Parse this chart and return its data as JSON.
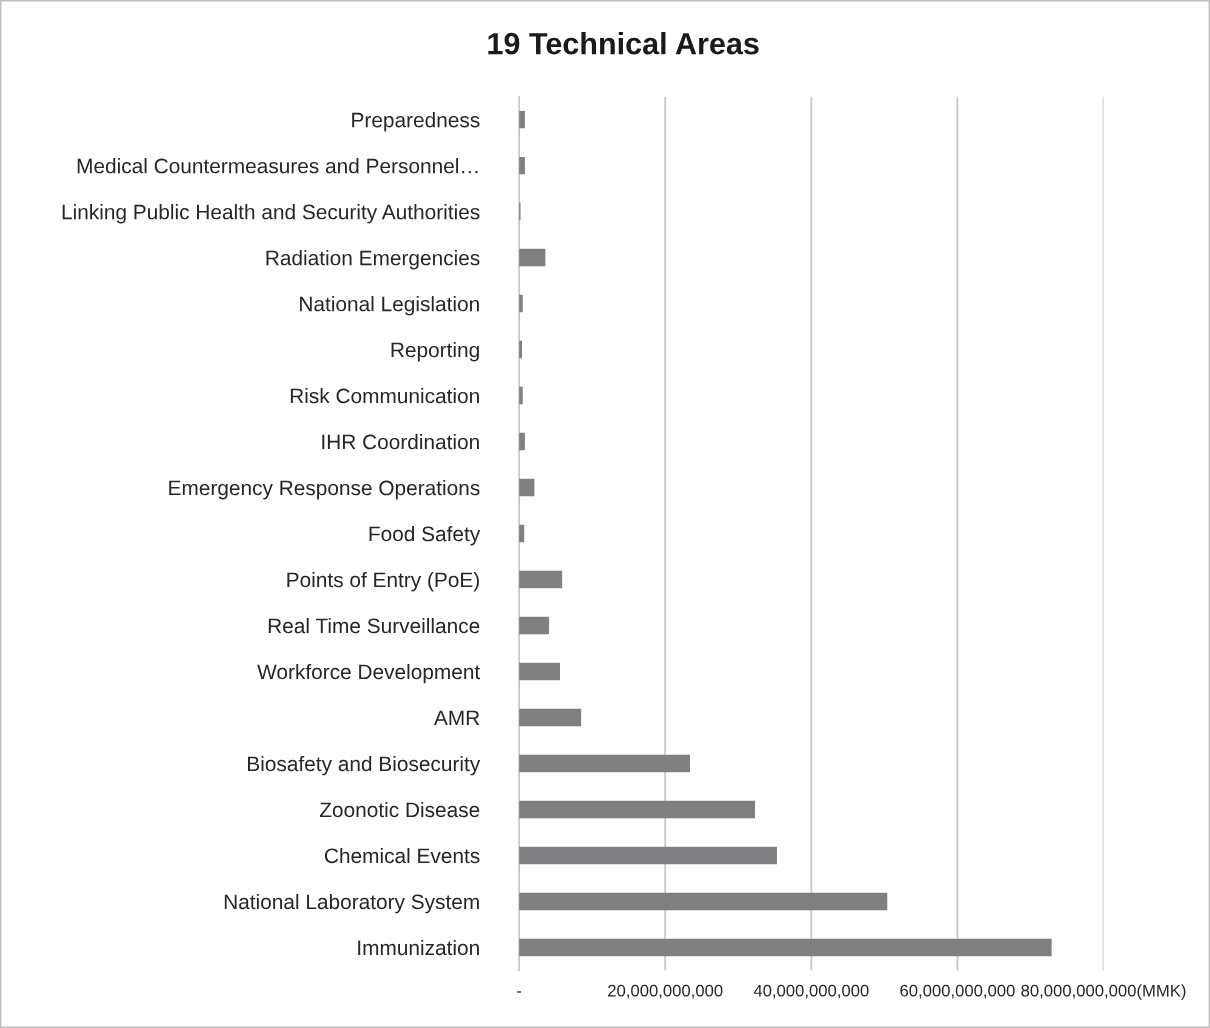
{
  "chart_data": {
    "type": "bar",
    "orientation": "horizontal",
    "title": "19 Technical Areas",
    "categories": [
      "Preparedness",
      "Medical Countermeasures and Personnel…",
      "Linking Public Health and Security Authorities",
      "Radiation Emergencies",
      "National Legislation",
      "Reporting",
      "Risk Communication",
      "IHR Coordination",
      "Emergency Response Operations",
      "Food Safety",
      "Points of Entry (PoE)",
      "Real Time Surveillance",
      "Workforce Development",
      "AMR",
      "Biosafety and Biosecurity",
      "Zoonotic Disease",
      "Chemical Events",
      "National Laboratory System",
      "Immunization"
    ],
    "values": [
      800000000,
      800000000,
      200000000,
      3600000000,
      500000000,
      400000000,
      500000000,
      800000000,
      2100000000,
      700000000,
      5900000000,
      4100000000,
      5600000000,
      8500000000,
      23400000000,
      32300000000,
      35300000000,
      50400000000,
      72900000000
    ],
    "color": "#808083",
    "xlim": [
      0,
      80000000000
    ],
    "xticks": [
      {
        "value": 0,
        "label": "-"
      },
      {
        "value": 20000000000,
        "label": "20,000,000,000"
      },
      {
        "value": 40000000000,
        "label": "40,000,000,000"
      },
      {
        "value": 60000000000,
        "label": "60,000,000,000"
      },
      {
        "value": 80000000000,
        "label": "80,000,000,000(MMK)"
      }
    ],
    "grid": "x",
    "legend": false
  }
}
